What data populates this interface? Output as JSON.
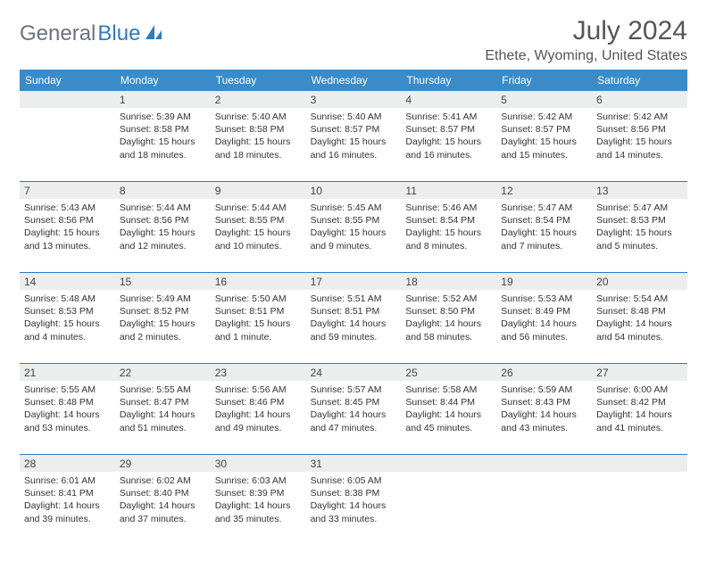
{
  "brand": {
    "part1": "General",
    "part2": "Blue",
    "gray": "#6b7280",
    "blue": "#2f7bbf"
  },
  "title": "July 2024",
  "location": "Ethete, Wyoming, United States",
  "colors": {
    "header_bg": "#3b8bc8",
    "header_text": "#ffffff",
    "num_row_bg": "#eceded",
    "sep": "#2f7bbf",
    "body_text": "#333333"
  },
  "day_names": [
    "Sunday",
    "Monday",
    "Tuesday",
    "Wednesday",
    "Thursday",
    "Friday",
    "Saturday"
  ],
  "weeks": [
    [
      {
        "n": "",
        "lines": []
      },
      {
        "n": "1",
        "lines": [
          "Sunrise: 5:39 AM",
          "Sunset: 8:58 PM",
          "Daylight: 15 hours and 18 minutes."
        ]
      },
      {
        "n": "2",
        "lines": [
          "Sunrise: 5:40 AM",
          "Sunset: 8:58 PM",
          "Daylight: 15 hours and 18 minutes."
        ]
      },
      {
        "n": "3",
        "lines": [
          "Sunrise: 5:40 AM",
          "Sunset: 8:57 PM",
          "Daylight: 15 hours and 16 minutes."
        ]
      },
      {
        "n": "4",
        "lines": [
          "Sunrise: 5:41 AM",
          "Sunset: 8:57 PM",
          "Daylight: 15 hours and 16 minutes."
        ]
      },
      {
        "n": "5",
        "lines": [
          "Sunrise: 5:42 AM",
          "Sunset: 8:57 PM",
          "Daylight: 15 hours and 15 minutes."
        ]
      },
      {
        "n": "6",
        "lines": [
          "Sunrise: 5:42 AM",
          "Sunset: 8:56 PM",
          "Daylight: 15 hours and 14 minutes."
        ]
      }
    ],
    [
      {
        "n": "7",
        "lines": [
          "Sunrise: 5:43 AM",
          "Sunset: 8:56 PM",
          "Daylight: 15 hours and 13 minutes."
        ]
      },
      {
        "n": "8",
        "lines": [
          "Sunrise: 5:44 AM",
          "Sunset: 8:56 PM",
          "Daylight: 15 hours and 12 minutes."
        ]
      },
      {
        "n": "9",
        "lines": [
          "Sunrise: 5:44 AM",
          "Sunset: 8:55 PM",
          "Daylight: 15 hours and 10 minutes."
        ]
      },
      {
        "n": "10",
        "lines": [
          "Sunrise: 5:45 AM",
          "Sunset: 8:55 PM",
          "Daylight: 15 hours and 9 minutes."
        ]
      },
      {
        "n": "11",
        "lines": [
          "Sunrise: 5:46 AM",
          "Sunset: 8:54 PM",
          "Daylight: 15 hours and 8 minutes."
        ]
      },
      {
        "n": "12",
        "lines": [
          "Sunrise: 5:47 AM",
          "Sunset: 8:54 PM",
          "Daylight: 15 hours and 7 minutes."
        ]
      },
      {
        "n": "13",
        "lines": [
          "Sunrise: 5:47 AM",
          "Sunset: 8:53 PM",
          "Daylight: 15 hours and 5 minutes."
        ]
      }
    ],
    [
      {
        "n": "14",
        "lines": [
          "Sunrise: 5:48 AM",
          "Sunset: 8:53 PM",
          "Daylight: 15 hours and 4 minutes."
        ]
      },
      {
        "n": "15",
        "lines": [
          "Sunrise: 5:49 AM",
          "Sunset: 8:52 PM",
          "Daylight: 15 hours and 2 minutes."
        ]
      },
      {
        "n": "16",
        "lines": [
          "Sunrise: 5:50 AM",
          "Sunset: 8:51 PM",
          "Daylight: 15 hours and 1 minute."
        ]
      },
      {
        "n": "17",
        "lines": [
          "Sunrise: 5:51 AM",
          "Sunset: 8:51 PM",
          "Daylight: 14 hours and 59 minutes."
        ]
      },
      {
        "n": "18",
        "lines": [
          "Sunrise: 5:52 AM",
          "Sunset: 8:50 PM",
          "Daylight: 14 hours and 58 minutes."
        ]
      },
      {
        "n": "19",
        "lines": [
          "Sunrise: 5:53 AM",
          "Sunset: 8:49 PM",
          "Daylight: 14 hours and 56 minutes."
        ]
      },
      {
        "n": "20",
        "lines": [
          "Sunrise: 5:54 AM",
          "Sunset: 8:48 PM",
          "Daylight: 14 hours and 54 minutes."
        ]
      }
    ],
    [
      {
        "n": "21",
        "lines": [
          "Sunrise: 5:55 AM",
          "Sunset: 8:48 PM",
          "Daylight: 14 hours and 53 minutes."
        ]
      },
      {
        "n": "22",
        "lines": [
          "Sunrise: 5:55 AM",
          "Sunset: 8:47 PM",
          "Daylight: 14 hours and 51 minutes."
        ]
      },
      {
        "n": "23",
        "lines": [
          "Sunrise: 5:56 AM",
          "Sunset: 8:46 PM",
          "Daylight: 14 hours and 49 minutes."
        ]
      },
      {
        "n": "24",
        "lines": [
          "Sunrise: 5:57 AM",
          "Sunset: 8:45 PM",
          "Daylight: 14 hours and 47 minutes."
        ]
      },
      {
        "n": "25",
        "lines": [
          "Sunrise: 5:58 AM",
          "Sunset: 8:44 PM",
          "Daylight: 14 hours and 45 minutes."
        ]
      },
      {
        "n": "26",
        "lines": [
          "Sunrise: 5:59 AM",
          "Sunset: 8:43 PM",
          "Daylight: 14 hours and 43 minutes."
        ]
      },
      {
        "n": "27",
        "lines": [
          "Sunrise: 6:00 AM",
          "Sunset: 8:42 PM",
          "Daylight: 14 hours and 41 minutes."
        ]
      }
    ],
    [
      {
        "n": "28",
        "lines": [
          "Sunrise: 6:01 AM",
          "Sunset: 8:41 PM",
          "Daylight: 14 hours and 39 minutes."
        ]
      },
      {
        "n": "29",
        "lines": [
          "Sunrise: 6:02 AM",
          "Sunset: 8:40 PM",
          "Daylight: 14 hours and 37 minutes."
        ]
      },
      {
        "n": "30",
        "lines": [
          "Sunrise: 6:03 AM",
          "Sunset: 8:39 PM",
          "Daylight: 14 hours and 35 minutes."
        ]
      },
      {
        "n": "31",
        "lines": [
          "Sunrise: 6:05 AM",
          "Sunset: 8:38 PM",
          "Daylight: 14 hours and 33 minutes."
        ]
      },
      {
        "n": "",
        "lines": []
      },
      {
        "n": "",
        "lines": []
      },
      {
        "n": "",
        "lines": []
      }
    ]
  ]
}
